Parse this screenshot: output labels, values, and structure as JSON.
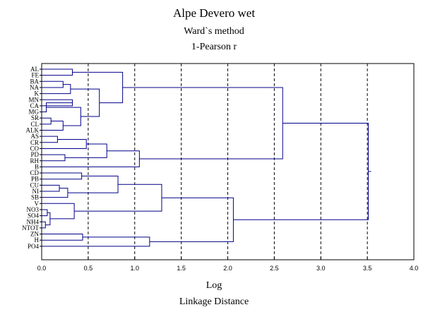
{
  "chart_data": {
    "type": "dendrogram",
    "title": "Alpe Devero wet",
    "subtitle1": "Ward`s method",
    "subtitle2": "1-Pearson r",
    "xlabel": "Log",
    "xlabel2": "Linkage Distance",
    "xlim": [
      0.0,
      4.0
    ],
    "xticks": [
      "0.0",
      "0.5",
      "1.0",
      "1.5",
      "2.0",
      "2.5",
      "3.0",
      "3.5",
      "4.0"
    ],
    "grid": "vertical-dashed",
    "line_color": "#00008b",
    "leaves": [
      "AL",
      "FE",
      "BA",
      "NA",
      "K",
      "MN",
      "CA",
      "MG",
      "SR",
      "CL",
      "ALK",
      "AS",
      "CR",
      "CO",
      "PD",
      "RH",
      "B",
      "CD",
      "PB",
      "CU",
      "NI",
      "SB",
      "V",
      "NO3",
      "SO4",
      "NH4",
      "NTOT",
      "ZN",
      "H",
      "PO4"
    ],
    "merges": [
      {
        "a": "L:0",
        "b": "L:1",
        "h": 0.33
      },
      {
        "a": "L:2",
        "b": "L:3",
        "h": 0.23
      },
      {
        "a": "M:1",
        "b": "L:4",
        "h": 0.31
      },
      {
        "a": "L:5",
        "b": "L:6",
        "h": 0.33
      },
      {
        "a": "M:3",
        "b": "L:7",
        "h": 0.05
      },
      {
        "a": "L:8",
        "b": "L:9",
        "h": 0.1
      },
      {
        "a": "M:5",
        "b": "L:10",
        "h": 0.23
      },
      {
        "a": "M:4",
        "b": "M:6",
        "h": 0.42
      },
      {
        "a": "M:2",
        "b": "M:7",
        "h": 0.62
      },
      {
        "a": "M:0",
        "b": "M:8",
        "h": 0.87
      },
      {
        "a": "L:11",
        "b": "L:12",
        "h": 0.17
      },
      {
        "a": "M:10",
        "b": "L:13",
        "h": 0.48
      },
      {
        "a": "L:14",
        "b": "L:15",
        "h": 0.25
      },
      {
        "a": "M:11",
        "b": "M:12",
        "h": 0.7
      },
      {
        "a": "M:13",
        "b": "L:16",
        "h": 1.05
      },
      {
        "a": "M:9",
        "b": "M:14",
        "h": 2.59
      },
      {
        "a": "L:17",
        "b": "L:18",
        "h": 0.43
      },
      {
        "a": "L:19",
        "b": "L:20",
        "h": 0.19
      },
      {
        "a": "M:17",
        "b": "L:21",
        "h": 0.28
      },
      {
        "a": "M:16",
        "b": "M:18",
        "h": 0.82
      },
      {
        "a": "L:23",
        "b": "L:24",
        "h": 0.06
      },
      {
        "a": "L:25",
        "b": "L:26",
        "h": 0.04
      },
      {
        "a": "M:20",
        "b": "M:21",
        "h": 0.09
      },
      {
        "a": "L:22",
        "b": "M:22",
        "h": 0.35
      },
      {
        "a": "M:19",
        "b": "M:23",
        "h": 1.29
      },
      {
        "a": "L:27",
        "b": "L:28",
        "h": 0.44
      },
      {
        "a": "M:25",
        "b": "L:29",
        "h": 1.16
      },
      {
        "a": "M:24",
        "b": "M:26",
        "h": 2.06
      },
      {
        "a": "M:15",
        "b": "M:27",
        "h": 3.51
      }
    ]
  }
}
